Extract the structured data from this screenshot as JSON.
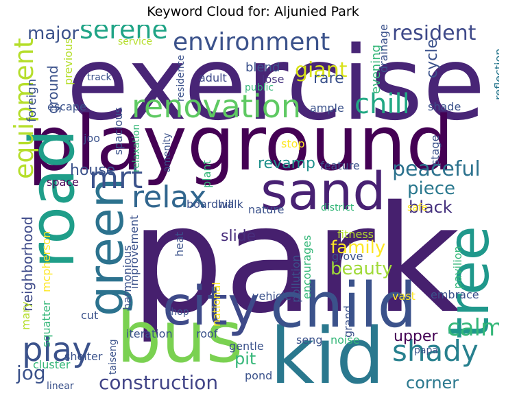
{
  "title": "Keyword Cloud for: Aljunied Park",
  "words": [
    {
      "text": "park",
      "color": "#46206e"
    },
    {
      "text": "exercise",
      "color": "#482576"
    },
    {
      "text": "playground",
      "color": "#440154"
    },
    {
      "text": "bus",
      "color": "#7ad151"
    },
    {
      "text": "kid",
      "color": "#2a788e"
    },
    {
      "text": "child",
      "color": "#3b528b"
    },
    {
      "text": "sand",
      "color": "#482173"
    },
    {
      "text": "city",
      "color": "#3e4a89"
    },
    {
      "text": "road",
      "color": "#1f9e89"
    },
    {
      "text": "tree",
      "color": "#1f988b"
    },
    {
      "text": "green",
      "color": "#2c728e"
    },
    {
      "text": "renovation",
      "color": "#5ec962"
    },
    {
      "text": "environment",
      "color": "#3b528b"
    },
    {
      "text": "serene",
      "color": "#20a486"
    },
    {
      "text": "relax",
      "color": "#31668e"
    },
    {
      "text": "mrt",
      "color": "#3b528b"
    },
    {
      "text": "shady",
      "color": "#27808e"
    },
    {
      "text": "play",
      "color": "#3b528b"
    },
    {
      "text": "chill",
      "color": "#22a884"
    },
    {
      "text": "equipment",
      "color": "#b5de2b"
    },
    {
      "text": "resident",
      "color": "#3e4989"
    },
    {
      "text": "construction",
      "color": "#414487"
    },
    {
      "text": "peaceful",
      "color": "#2c728e"
    },
    {
      "text": "calm",
      "color": "#35b779"
    },
    {
      "text": "jog",
      "color": "#3b528b"
    },
    {
      "text": "major",
      "color": "#3b528b"
    },
    {
      "text": "giant",
      "color": "#d8e219"
    },
    {
      "text": "beauty",
      "color": "#a0da39"
    },
    {
      "text": "upper",
      "color": "#440154"
    },
    {
      "text": "piece",
      "color": "#2a788e"
    },
    {
      "text": "black",
      "color": "#46327e"
    },
    {
      "text": "family",
      "color": "#fde725"
    },
    {
      "text": "corner",
      "color": "#2a788e"
    },
    {
      "text": "slide",
      "color": "#472d7b"
    },
    {
      "text": "house",
      "color": "#3b528b"
    },
    {
      "text": "revamp",
      "color": "#21918c"
    },
    {
      "text": "neighborhood",
      "color": "#3e4a89"
    },
    {
      "text": "pit",
      "color": "#35b779"
    },
    {
      "text": "ground",
      "color": "#3b528b"
    },
    {
      "text": "foreign",
      "color": "#3b528b"
    },
    {
      "text": "escape",
      "color": "#3b528b"
    },
    {
      "text": "track",
      "color": "#3b528b"
    },
    {
      "text": "adult",
      "color": "#3e4989"
    },
    {
      "text": "lose",
      "color": "#46337f"
    },
    {
      "text": "rare",
      "color": "#3b528b"
    },
    {
      "text": "blend",
      "color": "#3b528b"
    },
    {
      "text": "cycle",
      "color": "#3b528b"
    },
    {
      "text": "evening",
      "color": "#35b779"
    },
    {
      "text": "drainage",
      "color": "#3b528b"
    },
    {
      "text": "reflection",
      "color": "#2a788e"
    },
    {
      "text": "previous",
      "color": "#b5de2b"
    },
    {
      "text": "service",
      "color": "#b5de2b"
    },
    {
      "text": "residence",
      "color": "#3b528b"
    },
    {
      "text": "public",
      "color": "#35b779"
    },
    {
      "text": "ample",
      "color": "#3b528b"
    },
    {
      "text": "shade",
      "color": "#3b528b"
    },
    {
      "text": "stage",
      "color": "#3b528b"
    },
    {
      "text": "macpherson",
      "color": "#3b528b"
    },
    {
      "text": "joo",
      "color": "#3b528b"
    },
    {
      "text": "spacious",
      "color": "#3b528b"
    },
    {
      "text": "relaxation",
      "color": "#35b779"
    },
    {
      "text": "amenity",
      "color": "#3b528b"
    },
    {
      "text": "stop",
      "color": "#fde725"
    },
    {
      "text": "feature",
      "color": "#3b528b"
    },
    {
      "text": "plant",
      "color": "#35b779"
    },
    {
      "text": "space",
      "color": "#440154"
    },
    {
      "text": "boardwalk",
      "color": "#3b528b"
    },
    {
      "text": "safe",
      "color": "#fde725"
    },
    {
      "text": "hill",
      "color": "#3b528b"
    },
    {
      "text": "nature",
      "color": "#3b528b"
    },
    {
      "text": "district",
      "color": "#35b779"
    },
    {
      "text": "improvement",
      "color": "#3b528b"
    },
    {
      "text": "heat",
      "color": "#3b528b"
    },
    {
      "text": "harmonious",
      "color": "#3b528b"
    },
    {
      "text": "pollution",
      "color": "#3b528b"
    },
    {
      "text": "encourages",
      "color": "#35b779"
    },
    {
      "text": "fitness",
      "color": "#b5de2b"
    },
    {
      "text": "grove",
      "color": "#3b528b"
    },
    {
      "text": "pavilion",
      "color": "#35b779"
    },
    {
      "text": "mcpherson",
      "color": "#fde725"
    },
    {
      "text": "squatter",
      "color": "#35b779"
    },
    {
      "text": "mary",
      "color": "#b5de2b"
    },
    {
      "text": "national",
      "color": "#fde725"
    },
    {
      "text": "vehicle",
      "color": "#3b528b"
    },
    {
      "text": "vast",
      "color": "#fde725"
    },
    {
      "text": "embrace",
      "color": "#3b528b"
    },
    {
      "text": "cut",
      "color": "#3b528b"
    },
    {
      "text": "shop",
      "color": "#3b528b"
    },
    {
      "text": "grand",
      "color": "#3b528b"
    },
    {
      "text": "iteration",
      "color": "#3b528b"
    },
    {
      "text": "roof",
      "color": "#3b528b"
    },
    {
      "text": "gentle",
      "color": "#3b528b"
    },
    {
      "text": "seng",
      "color": "#3b528b"
    },
    {
      "text": "noise",
      "color": "#35b779"
    },
    {
      "text": "papa",
      "color": "#3b528b"
    },
    {
      "text": "taiseng",
      "color": "#3b528b"
    },
    {
      "text": "cluster",
      "color": "#35b779"
    },
    {
      "text": "shelter",
      "color": "#3b528b"
    },
    {
      "text": "linear",
      "color": "#3b528b"
    },
    {
      "text": "pond",
      "color": "#3b528b"
    }
  ]
}
